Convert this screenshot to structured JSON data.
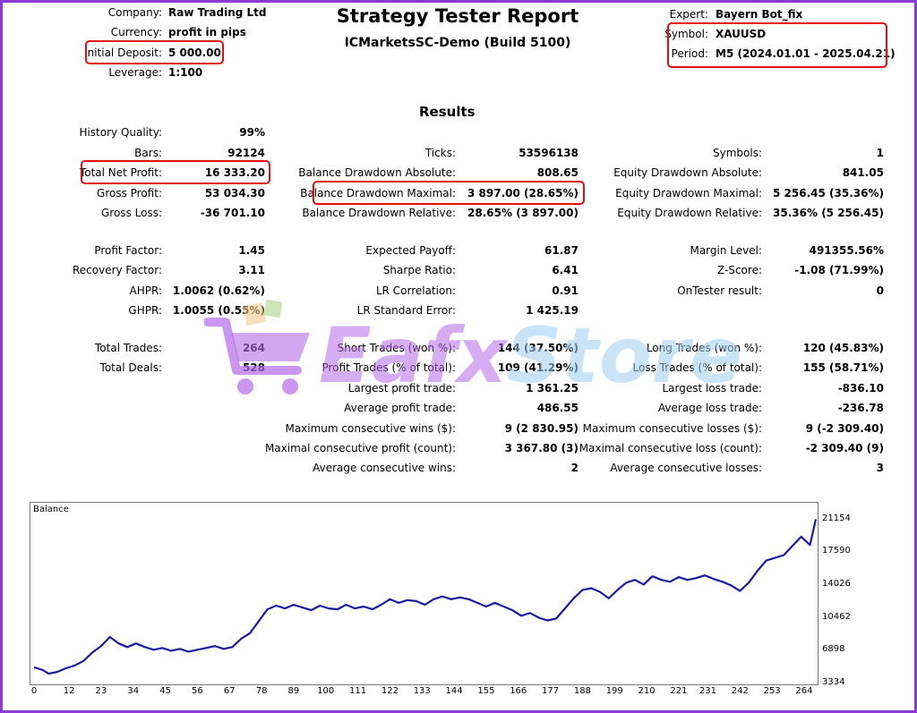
{
  "header": {
    "company_label": "Company:",
    "company_value": "Raw Trading Ltd",
    "currency_label": "Currency:",
    "currency_value": "profit in pips",
    "deposit_label": "Initial Deposit:",
    "deposit_value": "5 000.00",
    "leverage_label": "Leverage:",
    "leverage_value": "1:100",
    "title": "Strategy Tester Report",
    "subtitle": "ICMarketsSC-Demo (Build 5100)",
    "expert_label": "Expert:",
    "expert_value": "Bayern Bot_fix",
    "symbol_label": "Symbol:",
    "symbol_value": "XAUUSD",
    "period_label": "Period:",
    "period_value": "M5 (2024.01.01 - 2025.04.21)"
  },
  "results_heading": "Results",
  "col1": [
    {
      "label": "History Quality:",
      "value": "99%"
    },
    {
      "label": "Bars:",
      "value": "92124"
    },
    {
      "label": "Total Net Profit:",
      "value": "16 333.20"
    },
    {
      "label": "Gross Profit:",
      "value": "53 034.30"
    },
    {
      "label": "Gross Loss:",
      "value": "-36 701.10"
    },
    {
      "label": "Profit Factor:",
      "value": "1.45"
    },
    {
      "label": "Recovery Factor:",
      "value": "3.11"
    },
    {
      "label": "AHPR:",
      "value": "1.0062 (0.62%)"
    },
    {
      "label": "GHPR:",
      "value": "1.0055 (0.55%)"
    },
    {
      "label": "Total Trades:",
      "value": "264"
    },
    {
      "label": "Total Deals:",
      "value": "528"
    }
  ],
  "col2": [
    {
      "label": "Ticks:",
      "value": "53596138"
    },
    {
      "label": "Balance Drawdown Absolute:",
      "value": "808.65"
    },
    {
      "label": "Balance Drawdown Maximal:",
      "value": "3 897.00 (28.65%)"
    },
    {
      "label": "Balance Drawdown Relative:",
      "value": "28.65% (3 897.00)"
    },
    {
      "label": "Expected Payoff:",
      "value": "61.87"
    },
    {
      "label": "Sharpe Ratio:",
      "value": "6.41"
    },
    {
      "label": "LR Correlation:",
      "value": "0.91"
    },
    {
      "label": "LR Standard Error:",
      "value": "1 425.19"
    },
    {
      "label": "Short Trades (won %):",
      "value": "144 (37.50%)"
    },
    {
      "label": "Profit Trades (% of total):",
      "value": "109 (41.29%)"
    },
    {
      "label": "Largest profit trade:",
      "value": "1 361.25"
    },
    {
      "label": "Average profit trade:",
      "value": "486.55"
    },
    {
      "label": "Maximum consecutive wins ($):",
      "value": "9 (2 830.95)"
    },
    {
      "label": "Maximal consecutive profit (count):",
      "value": "3 367.80 (3)"
    },
    {
      "label": "Average consecutive wins:",
      "value": "2"
    }
  ],
  "col3": [
    {
      "label": "Symbols:",
      "value": "1"
    },
    {
      "label": "Equity Drawdown Absolute:",
      "value": "841.05"
    },
    {
      "label": "Equity Drawdown Maximal:",
      "value": "5 256.45 (35.36%)"
    },
    {
      "label": "Equity Drawdown Relative:",
      "value": "35.36% (5 256.45)"
    },
    {
      "label": "Margin Level:",
      "value": "491355.56%"
    },
    {
      "label": "Z-Score:",
      "value": "-1.08 (71.99%)"
    },
    {
      "label": "OnTester result:",
      "value": "0"
    },
    {
      "label": "Long Trades (won %):",
      "value": "120 (45.83%)"
    },
    {
      "label": "Loss Trades (% of total):",
      "value": "155 (58.71%)"
    },
    {
      "label": "Largest loss trade:",
      "value": "-836.10"
    },
    {
      "label": "Average loss trade:",
      "value": "-236.78"
    },
    {
      "label": "Maximum consecutive losses ($):",
      "value": "9 (-2 309.40)"
    },
    {
      "label": "Maximal consecutive loss (count):",
      "value": "-2 309.40 (9)"
    },
    {
      "label": "Average consecutive losses:",
      "value": "3"
    }
  ],
  "watermark": {
    "part1": "Eafx",
    "part2": "Store",
    "color1": "#b56ae8",
    "color2": "#9ecff0"
  },
  "colors": {
    "frame": "#8a3bd6",
    "highlight": "#e01010",
    "balance_line": "#1a1aa0"
  },
  "chart_data": {
    "type": "line",
    "title": "Balance",
    "xlabel": "",
    "ylabel": "",
    "x_ticks": [
      "0",
      "12",
      "23",
      "34",
      "45",
      "56",
      "67",
      "78",
      "89",
      "100",
      "111",
      "122",
      "133",
      "144",
      "155",
      "166",
      "177",
      "188",
      "199",
      "210",
      "221",
      "231",
      "242",
      "253",
      "264"
    ],
    "y_ticks": [
      "3334",
      "6898",
      "10462",
      "14026",
      "17590",
      "21154"
    ],
    "xlim": [
      0,
      268
    ],
    "ylim": [
      3334,
      22500
    ],
    "grid": false,
    "series": [
      {
        "x": [
          0,
          3,
          5,
          8,
          11,
          14,
          17,
          20,
          23,
          26,
          29,
          32,
          35,
          38,
          41,
          44,
          47,
          50,
          53,
          56,
          59,
          62,
          65,
          68,
          71,
          74,
          77,
          80,
          83,
          86,
          89,
          92,
          95,
          98,
          101,
          104,
          107,
          110,
          113,
          116,
          119,
          122,
          125,
          128,
          131,
          134,
          137,
          140,
          143,
          146,
          149,
          152,
          155,
          158,
          161,
          164,
          167,
          170,
          173,
          176,
          179,
          182,
          185,
          188,
          191,
          194,
          197,
          200,
          203,
          206,
          209,
          212,
          215,
          218,
          221,
          224,
          227,
          230,
          233,
          236,
          239,
          242,
          245,
          248,
          251,
          254,
          257,
          260,
          263,
          266,
          268
        ],
        "y": [
          5000,
          4700,
          4300,
          4500,
          4900,
          5200,
          5700,
          6600,
          7300,
          8300,
          7600,
          7200,
          7600,
          7200,
          6900,
          7100,
          6800,
          7000,
          6700,
          6900,
          7100,
          7300,
          7000,
          7200,
          8100,
          8700,
          10000,
          11300,
          11700,
          11400,
          11800,
          11500,
          11200,
          11700,
          11400,
          11300,
          11800,
          11400,
          11600,
          11300,
          11800,
          12400,
          12000,
          12300,
          12200,
          11800,
          12400,
          12700,
          12400,
          12600,
          12400,
          12000,
          11600,
          12000,
          11600,
          11200,
          10600,
          10900,
          10400,
          10100,
          10300,
          11400,
          12500,
          13400,
          13600,
          13200,
          12500,
          13400,
          14200,
          14500,
          14000,
          14900,
          14500,
          14300,
          14800,
          14500,
          14700,
          15000,
          14600,
          14300,
          13900,
          13300,
          14200,
          15500,
          16600,
          16900,
          17200,
          18200,
          19200,
          18300,
          21100
        ]
      }
    ]
  }
}
